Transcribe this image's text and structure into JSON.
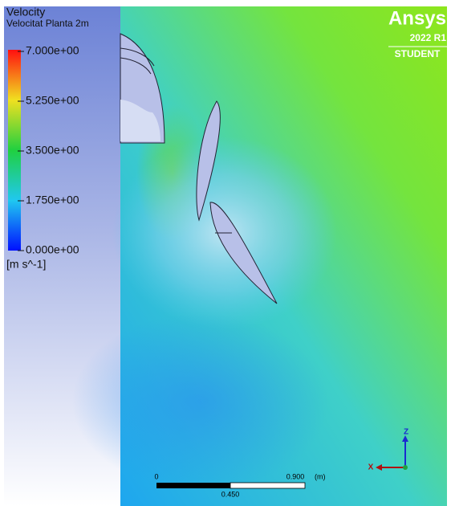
{
  "legend": {
    "title": "Velocity",
    "subtitle": "Velocitat Planta 2m",
    "labels": [
      "7.000e+00",
      "5.250e+00",
      "3.500e+00",
      "1.750e+00",
      "0.000e+00"
    ],
    "unit": "[m s^-1]"
  },
  "logo": {
    "brand": "Ansys",
    "version": "2022 R1",
    "edition": "STUDENT"
  },
  "scale_bar": {
    "start": "0",
    "end": "0.900",
    "unit": "(m)",
    "middle": "0.450"
  },
  "axes": {
    "vertical": "Z",
    "horizontal": "X"
  }
}
